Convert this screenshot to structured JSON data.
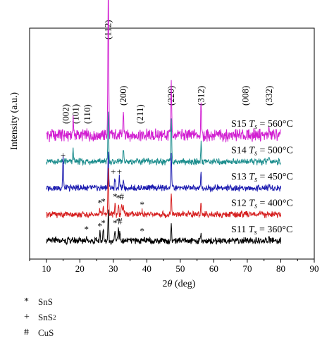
{
  "chart_data": {
    "type": "line",
    "title": "",
    "xlabel": "2θ (deg)",
    "ylabel": "Intensity (a.u.)",
    "xlim": [
      5,
      90
    ],
    "xticks": [
      "10",
      "20",
      "30",
      "40",
      "50",
      "60",
      "70",
      "80",
      "90"
    ],
    "grid": false,
    "peak_labels": [
      {
        "label": "(002)",
        "x": 15.8
      },
      {
        "label": "(101)",
        "x": 18.8
      },
      {
        "label": "(110)",
        "x": 22.3
      },
      {
        "label": "(112)",
        "x": 28.5
      },
      {
        "label": "(200)",
        "x": 33.0
      },
      {
        "label": "(211)",
        "x": 38.0
      },
      {
        "label": "(220)",
        "x": 47.3
      },
      {
        "label": "(312)",
        "x": 56.2
      },
      {
        "label": "(008)",
        "x": 69.5
      },
      {
        "label": "(332)",
        "x": 76.5
      }
    ],
    "series": [
      {
        "name": "S15",
        "ts": "= 560°C",
        "color": "#d11fd1",
        "offset": 4,
        "scale": 1.9,
        "spikes": [
          [
            18.0,
            3
          ],
          [
            28.5,
            26
          ],
          [
            33.0,
            4
          ],
          [
            47.3,
            8
          ],
          [
            56.2,
            6
          ],
          [
            76.5,
            1
          ]
        ]
      },
      {
        "name": "S14",
        "ts": "= 500°C",
        "color": "#1a8c8c",
        "offset": 3,
        "scale": 1.0,
        "spikes": [
          [
            18.0,
            4
          ],
          [
            28.5,
            16
          ],
          [
            33.0,
            4
          ],
          [
            47.3,
            14
          ],
          [
            56.2,
            6
          ],
          [
            76.5,
            1.5
          ]
        ]
      },
      {
        "name": "S13",
        "ts": "= 450°C",
        "color": "#1c1cb0",
        "offset": 2,
        "scale": 1.0,
        "spikes": [
          [
            15.0,
            10
          ],
          [
            28.5,
            11
          ],
          [
            30.5,
            3
          ],
          [
            31.8,
            3
          ],
          [
            33.0,
            2
          ],
          [
            47.3,
            11
          ],
          [
            56.2,
            5
          ],
          [
            76.5,
            1
          ]
        ]
      },
      {
        "name": "S12",
        "ts": "= 400°C",
        "color": "#d62020",
        "offset": 1,
        "scale": 1.0,
        "spikes": [
          [
            26.0,
            1.5
          ],
          [
            27.0,
            2
          ],
          [
            28.5,
            14
          ],
          [
            30.5,
            3.5
          ],
          [
            31.5,
            3
          ],
          [
            32.5,
            3.5
          ],
          [
            33.0,
            2
          ],
          [
            38.6,
            1
          ],
          [
            47.3,
            6
          ],
          [
            56.2,
            4
          ],
          [
            76.5,
            1
          ]
        ]
      },
      {
        "name": "S11",
        "ts": "= 360°C",
        "color": "#000000",
        "offset": 0,
        "scale": 1.0,
        "spikes": [
          [
            22.0,
            1.5
          ],
          [
            26.0,
            2.5
          ],
          [
            27.0,
            3.5
          ],
          [
            28.5,
            9
          ],
          [
            30.5,
            3.5
          ],
          [
            31.5,
            4
          ],
          [
            32.0,
            3
          ],
          [
            38.6,
            1
          ],
          [
            47.3,
            5
          ],
          [
            56.2,
            2
          ],
          [
            76.5,
            1
          ]
        ]
      }
    ],
    "phase_markers": [
      {
        "symbol": "+",
        "series": "S14",
        "x": 15.0
      },
      {
        "symbol": "+",
        "series": "S13",
        "x": 30.0
      },
      {
        "symbol": "+",
        "series": "S13",
        "x": 31.8
      },
      {
        "symbol": "*",
        "series": "S12",
        "x": 26.0
      },
      {
        "symbol": "*",
        "series": "S12",
        "x": 27.0
      },
      {
        "symbol": "*",
        "series": "S12",
        "x": 30.5
      },
      {
        "symbol": "*",
        "series": "S12",
        "x": 31.5
      },
      {
        "symbol": "#",
        "series": "S12",
        "x": 32.5
      },
      {
        "symbol": "*",
        "series": "S12",
        "x": 38.6
      },
      {
        "symbol": "*",
        "series": "S11",
        "x": 22.0
      },
      {
        "symbol": "*",
        "series": "S11",
        "x": 26.0
      },
      {
        "symbol": "*",
        "series": "S11",
        "x": 27.0
      },
      {
        "symbol": "*",
        "series": "S11",
        "x": 30.5
      },
      {
        "symbol": "*",
        "series": "S11",
        "x": 31.5
      },
      {
        "symbol": "#",
        "series": "S11",
        "x": 32.0
      },
      {
        "symbol": "*",
        "series": "S11",
        "x": 38.6
      }
    ]
  },
  "ts_symbol": "T",
  "ts_subscript": "s",
  "legend": [
    {
      "symbol": "*",
      "label": "SnS",
      "sub": ""
    },
    {
      "symbol": "+",
      "label": "SnS",
      "sub": "2"
    },
    {
      "symbol": "#",
      "label": "CuS",
      "sub": ""
    }
  ]
}
